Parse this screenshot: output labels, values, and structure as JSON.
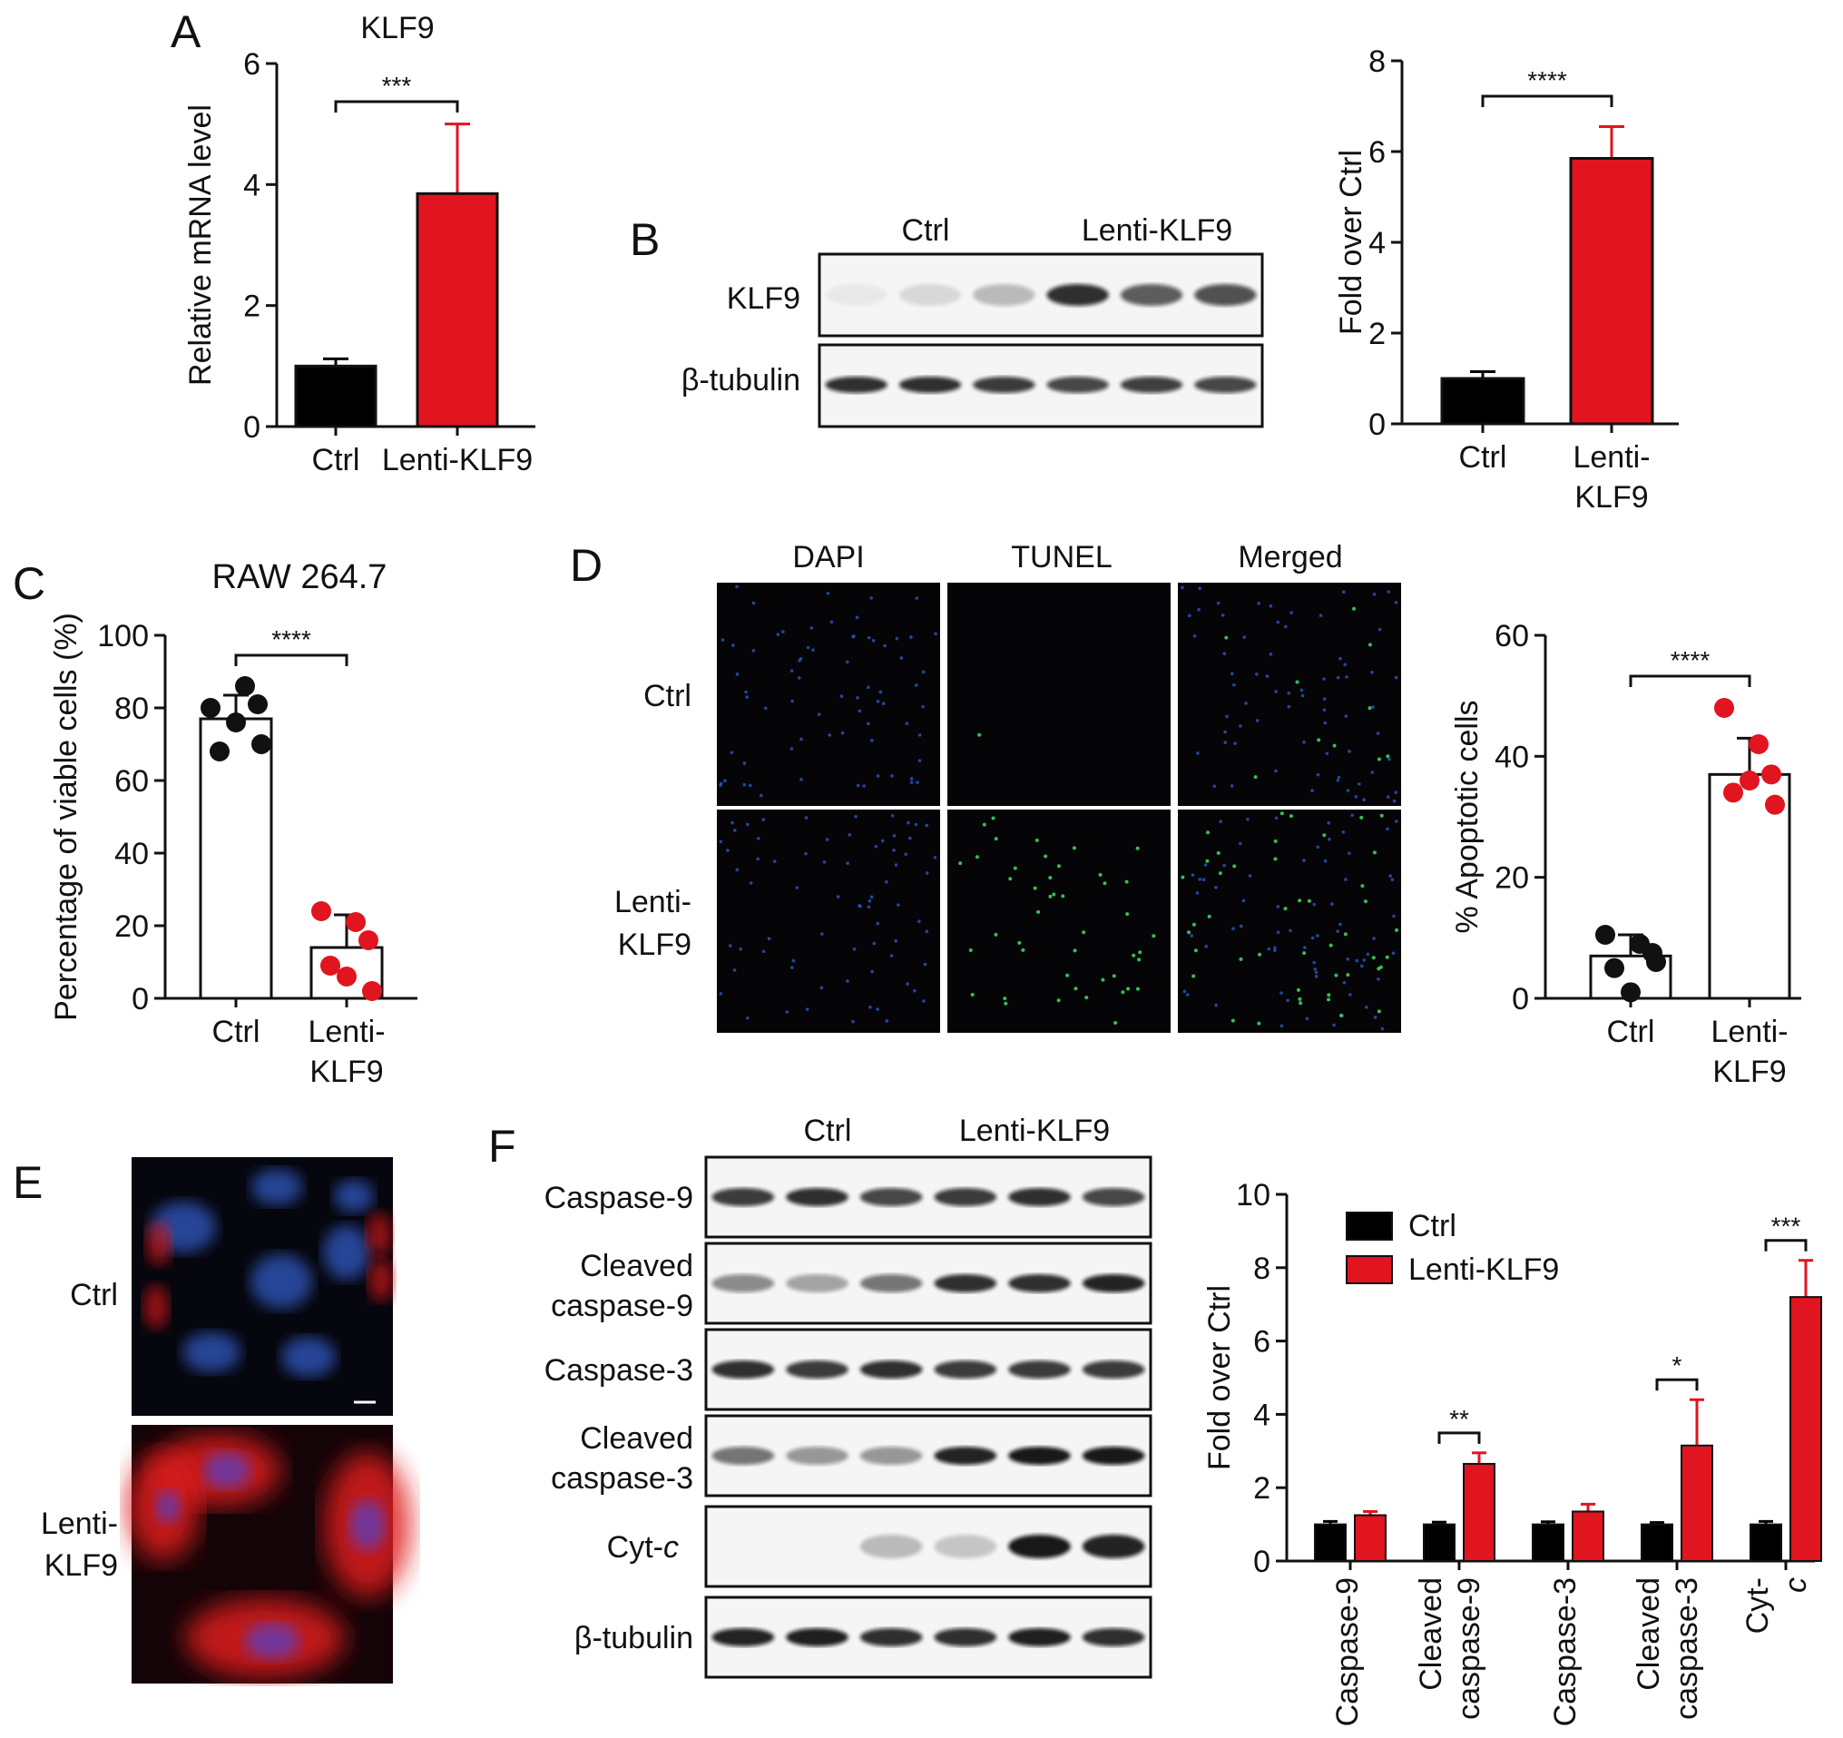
{
  "panels": {
    "A": {
      "letter": "A"
    },
    "B": {
      "letter": "B",
      "lane_groups": [
        "Ctrl",
        "Lenti-KLF9"
      ],
      "rows": [
        "KLF9",
        "β-tubulin"
      ]
    },
    "C": {
      "letter": "C"
    },
    "D": {
      "letter": "D",
      "columns": [
        "DAPI",
        "TUNEL",
        "Merged"
      ],
      "rows": [
        "Ctrl",
        "Lenti-",
        "KLF9"
      ]
    },
    "E": {
      "letter": "E",
      "rows": [
        "Ctrl",
        "Lenti-",
        "KLF9"
      ]
    },
    "F": {
      "letter": "F",
      "lane_groups": [
        "Ctrl",
        "Lenti-KLF9"
      ],
      "rows": [
        [
          "Caspase-9"
        ],
        [
          "Cleaved",
          "caspase-9"
        ],
        [
          "Caspase-3"
        ],
        [
          "Cleaved",
          "caspase-3"
        ],
        [
          "Cyt-",
          "c"
        ],
        [
          "β-tubulin"
        ]
      ]
    }
  },
  "colors": {
    "ctrl": "#000000",
    "lenti": "#e0151f",
    "dot_ctrl": "#111111",
    "dot_lenti": "#e0151f"
  },
  "chart_data": [
    {
      "id": "A",
      "type": "bar",
      "title": "KLF9",
      "categories": [
        "Ctrl",
        "Lenti-KLF9"
      ],
      "values": [
        1.0,
        3.85
      ],
      "errors": [
        0.12,
        1.15
      ],
      "ylabel": "Relative mRNA level",
      "ylim": [
        0,
        6
      ],
      "yticks": [
        0,
        2,
        4,
        6
      ],
      "significance": "***"
    },
    {
      "id": "B-quant",
      "type": "bar",
      "title": "",
      "categories": [
        [
          "Ctrl"
        ],
        [
          "Lenti-",
          "KLF9"
        ]
      ],
      "values": [
        1.0,
        5.85
      ],
      "errors": [
        0.15,
        0.7
      ],
      "ylabel": "Fold over Ctrl",
      "ylim": [
        0,
        8
      ],
      "yticks": [
        0,
        2,
        4,
        6,
        8
      ],
      "significance": "****"
    },
    {
      "id": "C",
      "type": "bar",
      "title": "RAW 264.7",
      "categories": [
        [
          "Ctrl"
        ],
        [
          "Lenti-",
          "KLF9"
        ]
      ],
      "values": [
        77,
        14
      ],
      "errors": [
        6.5,
        9
      ],
      "points": [
        [
          80,
          86,
          81,
          68,
          70,
          76
        ],
        [
          24,
          21,
          16,
          9,
          2,
          6
        ]
      ],
      "ylabel": "Percentage of viable cells (%)",
      "ylim": [
        0,
        100
      ],
      "yticks": [
        0,
        20,
        40,
        60,
        80,
        100
      ],
      "significance": "****"
    },
    {
      "id": "D-quant",
      "type": "bar",
      "title": "",
      "categories": [
        [
          "Ctrl"
        ],
        [
          "Lenti-",
          "KLF9"
        ]
      ],
      "values": [
        7,
        37
      ],
      "errors": [
        3.5,
        6
      ],
      "points": [
        [
          10.5,
          9,
          7.5,
          5,
          6,
          1
        ],
        [
          48,
          42,
          37,
          34,
          32,
          36
        ]
      ],
      "ylabel": "% Apoptotic cells",
      "ylim": [
        0,
        60
      ],
      "yticks": [
        0,
        20,
        40,
        60
      ],
      "significance": "****"
    },
    {
      "id": "F-quant",
      "type": "bar",
      "title": "",
      "categories": [
        [
          "Caspase-9"
        ],
        [
          "Cleaved",
          "caspase-9"
        ],
        [
          "Caspase-3"
        ],
        [
          "Cleaved",
          "caspase-3"
        ],
        [
          "Cyt-",
          "c"
        ]
      ],
      "series": [
        {
          "name": "Ctrl",
          "values": [
            1.0,
            1.0,
            1.0,
            1.0,
            1.0
          ],
          "errors": [
            0.08,
            0.06,
            0.07,
            0.05,
            0.08
          ]
        },
        {
          "name": "Lenti-KLF9",
          "values": [
            1.25,
            2.65,
            1.35,
            3.15,
            7.2
          ],
          "errors": [
            0.1,
            0.3,
            0.2,
            1.25,
            1.0
          ]
        }
      ],
      "ylabel": "Fold over Ctrl",
      "ylim": [
        0,
        10
      ],
      "yticks": [
        0,
        2,
        4,
        6,
        8,
        10
      ],
      "significance": [
        "",
        "**",
        "",
        "*",
        "***"
      ],
      "legend": "top-left"
    }
  ]
}
